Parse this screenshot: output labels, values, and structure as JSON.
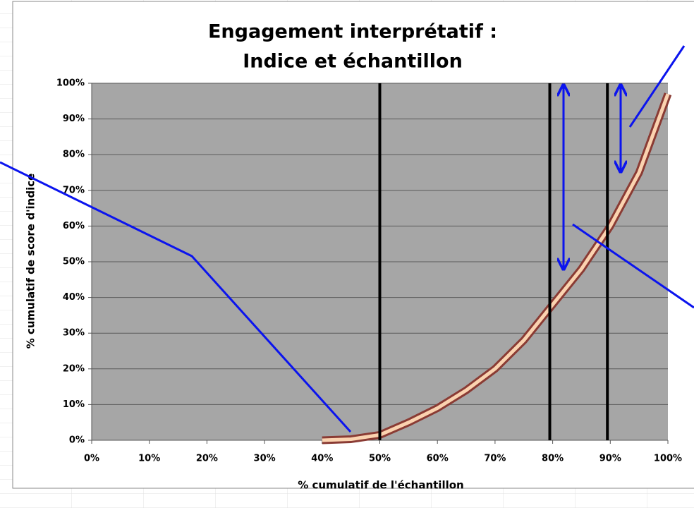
{
  "chart_data": {
    "type": "line",
    "title": [
      "Engagement interprétatif :",
      "Indice et échantillon"
    ],
    "xlabel": "% cumulatif de l'échantillon",
    "ylabel": "% cumulatif de score d'indice",
    "x": [
      40,
      45,
      50,
      55,
      60,
      65,
      70,
      75,
      80,
      85,
      90,
      95,
      100
    ],
    "series": [
      {
        "color": "#fbd3b0",
        "edge_color": "#8a3b34",
        "values": [
          0,
          0.3,
          1.5,
          5,
          9,
          14,
          20,
          28,
          38,
          48,
          60,
          75,
          97
        ]
      }
    ],
    "xlim": [
      0,
      100
    ],
    "ylim": [
      0,
      100
    ],
    "xticks": [
      {
        "value": 0,
        "label": "0%"
      },
      {
        "value": 10,
        "label": "10%"
      },
      {
        "value": 20,
        "label": "20%"
      },
      {
        "value": 30,
        "label": "30%"
      },
      {
        "value": 40,
        "label": "40%"
      },
      {
        "value": 50,
        "label": "50%"
      },
      {
        "value": 60,
        "label": "60%"
      },
      {
        "value": 70,
        "label": "70%"
      },
      {
        "value": 80,
        "label": "80%"
      },
      {
        "value": 90,
        "label": "90%"
      },
      {
        "value": 100,
        "label": "100%"
      }
    ],
    "yticks": [
      {
        "value": 0,
        "label": "0%"
      },
      {
        "value": 10,
        "label": "10%"
      },
      {
        "value": 20,
        "label": "20%"
      },
      {
        "value": 30,
        "label": "30%"
      },
      {
        "value": 40,
        "label": "40%"
      },
      {
        "value": 50,
        "label": "50%"
      },
      {
        "value": 60,
        "label": "60%"
      },
      {
        "value": 70,
        "label": "70%"
      },
      {
        "value": 80,
        "label": "80%"
      },
      {
        "value": 90,
        "label": "90%"
      },
      {
        "value": 100,
        "label": "100%"
      }
    ],
    "grid": true,
    "vlines": [
      50,
      79.5,
      89.5
    ]
  }
}
